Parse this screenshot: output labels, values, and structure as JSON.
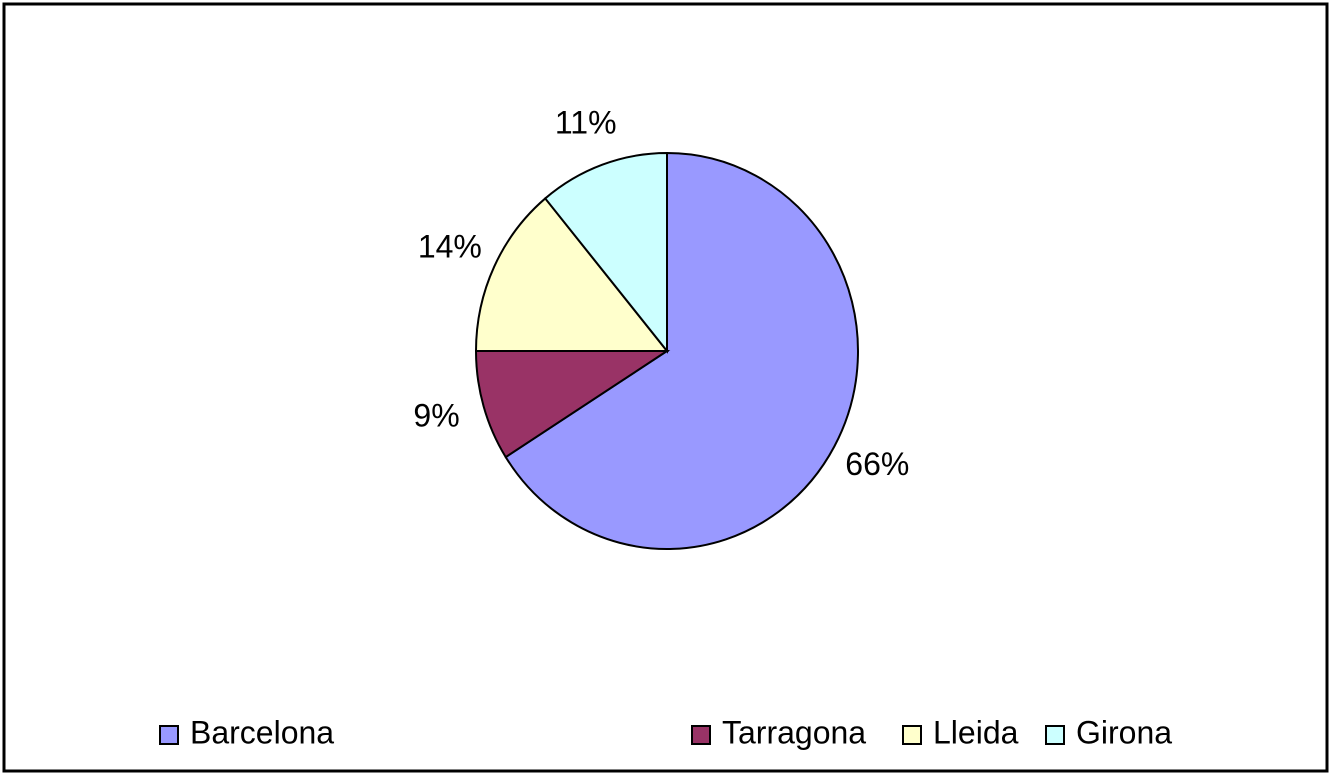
{
  "chart_data": {
    "type": "pie",
    "categories": [
      "Barcelona",
      "Tarragona",
      "Lleida",
      "Girona"
    ],
    "values": [
      66,
      9,
      14,
      11
    ],
    "value_labels": [
      "66%",
      "9%",
      "14%",
      "11%"
    ],
    "colors": [
      "#9999ff",
      "#993366",
      "#ffffcc",
      "#ccffff"
    ],
    "legend": "bottom"
  }
}
